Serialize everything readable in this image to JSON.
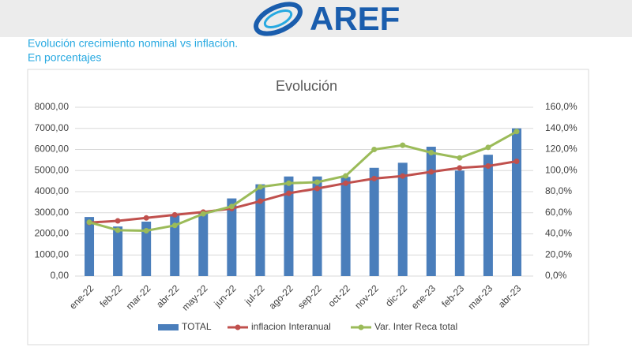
{
  "header": {
    "logo": "AREF",
    "lines": [
      "Evolución crecimiento nominal vs inflación.",
      "En porcentajes"
    ]
  },
  "chart_data": {
    "type": "bar",
    "title": "Evolución",
    "categories": [
      "ene-22",
      "feb-22",
      "mar-22",
      "abr-22",
      "may-22",
      "jun-22",
      "jul-22",
      "ago-22",
      "sep-22",
      "oct-22",
      "nov-22",
      "dic-22",
      "ene-23",
      "feb-23",
      "mar-23",
      "abr-23"
    ],
    "series": [
      {
        "name": "TOTAL",
        "type": "bar",
        "color": "#4a7ebb",
        "values": [
          2800,
          2350,
          2580,
          2900,
          3050,
          3680,
          4350,
          4720,
          4720,
          4700,
          5130,
          5370,
          6130,
          5000,
          5750,
          7000
        ]
      },
      {
        "name": "inflacion Interanual",
        "type": "line",
        "axis": "y2",
        "color": "#c0504d",
        "values": [
          50.7,
          52.3,
          55.1,
          58.0,
          60.7,
          64.0,
          71.0,
          78.5,
          83.0,
          88.0,
          92.4,
          94.8,
          98.8,
          102.5,
          104.3,
          108.8
        ]
      },
      {
        "name": "Var. Inter Reca total",
        "type": "line",
        "axis": "y2",
        "color": "#9bbb59",
        "values": [
          51,
          43.5,
          43,
          48,
          59,
          66,
          84.5,
          88,
          89,
          95,
          120,
          124,
          117,
          112,
          122,
          137
        ]
      }
    ],
    "ylim": [
      0,
      8000
    ],
    "yticks": [
      {
        "value": 0,
        "label": "0,00"
      },
      {
        "value": 1000,
        "label": "1000,00"
      },
      {
        "value": 2000,
        "label": "2000,00"
      },
      {
        "value": 3000,
        "label": "3000,00"
      },
      {
        "value": 4000,
        "label": "4000,00"
      },
      {
        "value": 5000,
        "label": "5000,00"
      },
      {
        "value": 6000,
        "label": "6000,00"
      },
      {
        "value": 7000,
        "label": "7000,00"
      },
      {
        "value": 8000,
        "label": "8000,00"
      }
    ],
    "y2lim": [
      0,
      160
    ],
    "y2ticks": [
      {
        "value": 0,
        "label": "0,0%"
      },
      {
        "value": 20,
        "label": "20,0%"
      },
      {
        "value": 40,
        "label": "40,0%"
      },
      {
        "value": 60,
        "label": "60,0%"
      },
      {
        "value": 80,
        "label": "80,0%"
      },
      {
        "value": 100,
        "label": "100,0%"
      },
      {
        "value": 120,
        "label": "120,0%"
      },
      {
        "value": 140,
        "label": "140,0%"
      },
      {
        "value": 160,
        "label": "160,0%"
      }
    ],
    "grid": true,
    "legend": "bottom"
  }
}
